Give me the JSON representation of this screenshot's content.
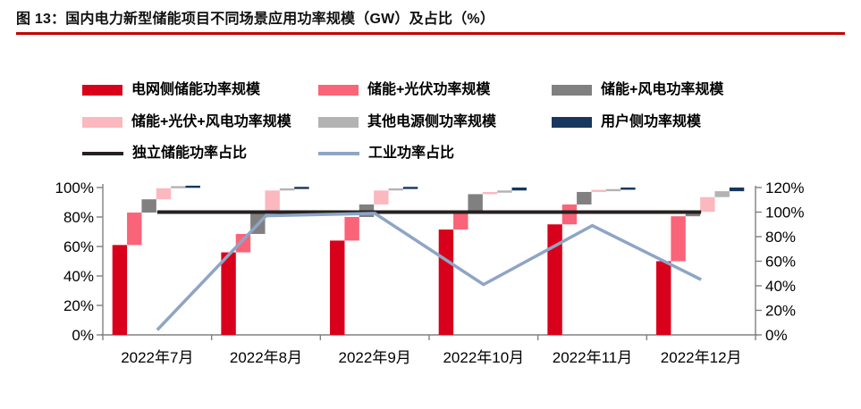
{
  "title": "图 13：国内电力新型储能项目不同场景应用功率规模（GW）及占比（%）",
  "accent": {
    "title_rule_color": "#C00000"
  },
  "legend": {
    "rows": [
      [
        {
          "label": "电网侧储能功率规模",
          "type": "bar",
          "color": "#D9001B"
        },
        {
          "label": "储能+光伏功率规模",
          "type": "bar",
          "color": "#FA6478"
        },
        {
          "label": "储能+风电功率规模",
          "type": "bar",
          "color": "#808080"
        }
      ],
      [
        {
          "label": "储能+光伏+风电功率规模",
          "type": "bar",
          "color": "#FBB8BF"
        },
        {
          "label": "其他电源侧功率规模",
          "type": "bar",
          "color": "#B3B3B3"
        },
        {
          "label": "用户侧功率规模",
          "type": "bar",
          "color": "#17375E"
        }
      ],
      [
        {
          "label": "独立储能功率占比",
          "type": "line",
          "color": "#262020"
        },
        {
          "label": "工业功率占比",
          "type": "line",
          "color": "#8EA5C5"
        }
      ]
    ]
  },
  "chart_data": {
    "type": "bar",
    "variant": "waterfall-stacked-to-100-with-lines",
    "title": "国内电力新型储能项目不同场景应用功率规模（GW）及占比（%）",
    "categories": [
      "2022年7月",
      "2022年8月",
      "2022年9月",
      "2022年10月",
      "2022年11月",
      "2022年12月"
    ],
    "series": [
      {
        "name": "电网侧储能功率规模",
        "color": "#D9001B",
        "values": [
          61,
          56,
          64,
          71.5,
          75,
          50
        ]
      },
      {
        "name": "储能+光伏功率规模",
        "color": "#FA6478",
        "values": [
          22,
          12.5,
          16,
          11.5,
          13.5,
          30.5
        ]
      },
      {
        "name": "储能+风电功率规模",
        "color": "#808080",
        "values": [
          9,
          14.5,
          8.5,
          12.5,
          8.5,
          3
        ]
      },
      {
        "name": "储能+光伏+风电功率规模",
        "color": "#FBB8BF",
        "values": [
          7.5,
          15,
          9.5,
          1,
          0.5,
          10
        ]
      },
      {
        "name": "其他电源侧功率规模",
        "color": "#B3B3B3",
        "values": [
          0.3,
          1,
          1,
          1.5,
          1,
          4
        ]
      },
      {
        "name": "用户侧功率规模",
        "color": "#17375E",
        "values": [
          0.2,
          1,
          1,
          2,
          1.5,
          2.5
        ]
      }
    ],
    "lines": [
      {
        "name": "独立储能功率占比",
        "color": "#262020",
        "axis": "right",
        "stroke_width": 4,
        "values": [
          100,
          100,
          100,
          100,
          100,
          100
        ]
      },
      {
        "name": "工业功率占比",
        "color": "#8EA5C5",
        "axis": "right",
        "stroke_width": 3.5,
        "values": [
          4,
          97,
          99,
          41,
          89,
          45
        ]
      }
    ],
    "left_axis": {
      "ticks": [
        "0%",
        "20%",
        "40%",
        "60%",
        "80%",
        "100%"
      ],
      "tick_values": [
        0,
        20,
        40,
        60,
        80,
        100
      ],
      "max": 100
    },
    "right_axis": {
      "ticks": [
        "0%",
        "20%",
        "40%",
        "60%",
        "80%",
        "100%",
        "120%"
      ],
      "tick_values": [
        0,
        20,
        40,
        60,
        80,
        100,
        120
      ],
      "max": 120
    },
    "layout": {
      "grid": false,
      "legend_position": "top",
      "bars_unit": "% of monthly total"
    }
  }
}
